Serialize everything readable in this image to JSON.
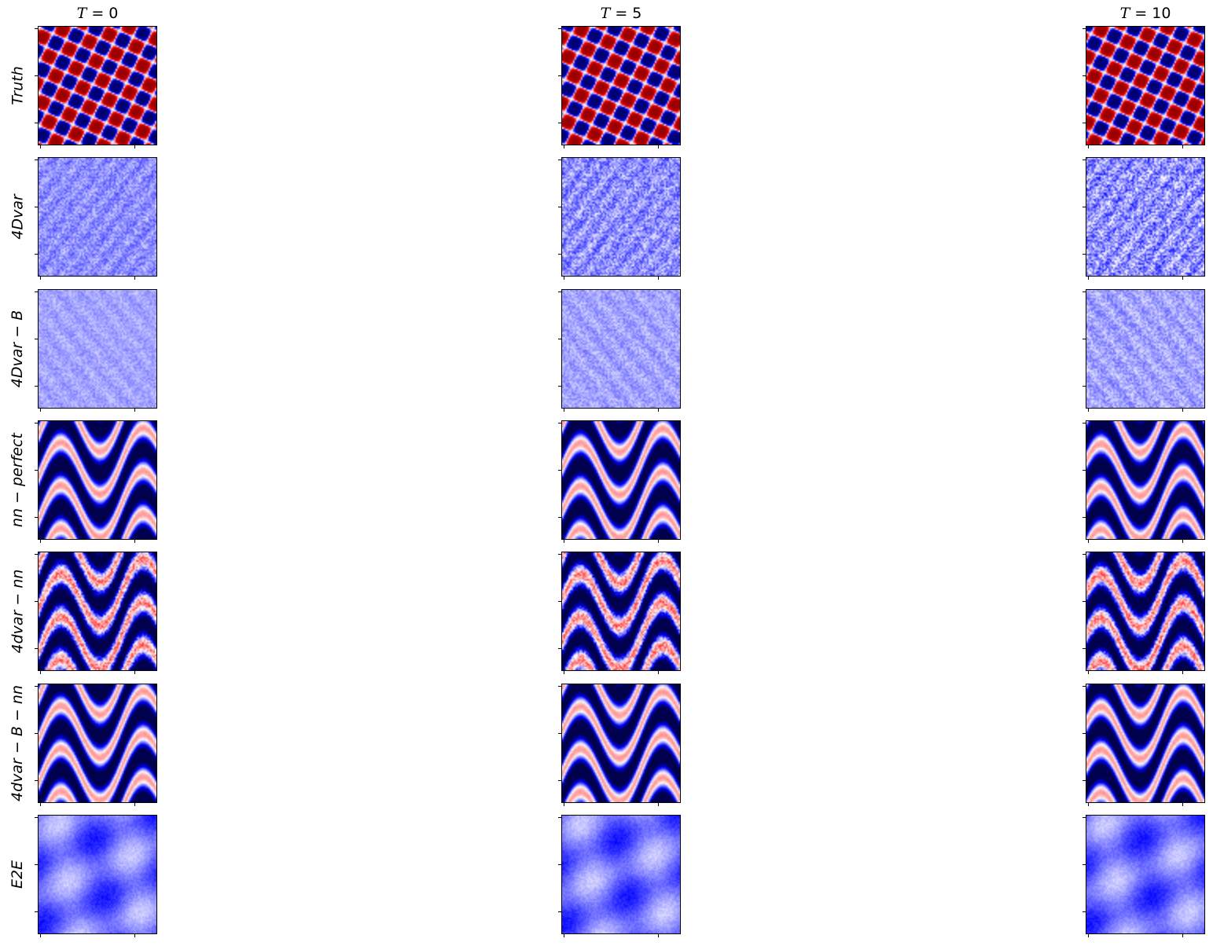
{
  "chart_data": {
    "type": "heatmap",
    "colormap": "seismic",
    "colormap_colors": [
      "#00004c",
      "#0000ff",
      "#ffffff",
      "#ff0000",
      "#7f0000"
    ],
    "columns": [
      {
        "title_var": "T",
        "title_rest": " = 0"
      },
      {
        "title_var": "T",
        "title_rest": " = 5"
      },
      {
        "title_var": "T",
        "title_rest": " = 10"
      }
    ],
    "rows": [
      {
        "label": "Truth",
        "pattern": "truth"
      },
      {
        "label": "4Dvar",
        "pattern": "noise_strong"
      },
      {
        "label": "4Dvar − B",
        "pattern": "noise_weak"
      },
      {
        "label": "nn − perfect",
        "pattern": "wave"
      },
      {
        "label": "4dvar − nn",
        "pattern": "wave_noisy"
      },
      {
        "label": "4dvar − B − nn",
        "pattern": "wave"
      },
      {
        "label": "E2E",
        "pattern": "smooth_light"
      }
    ],
    "axis_ticks": "shown, no tick labels",
    "grid": false,
    "legend": "none"
  }
}
